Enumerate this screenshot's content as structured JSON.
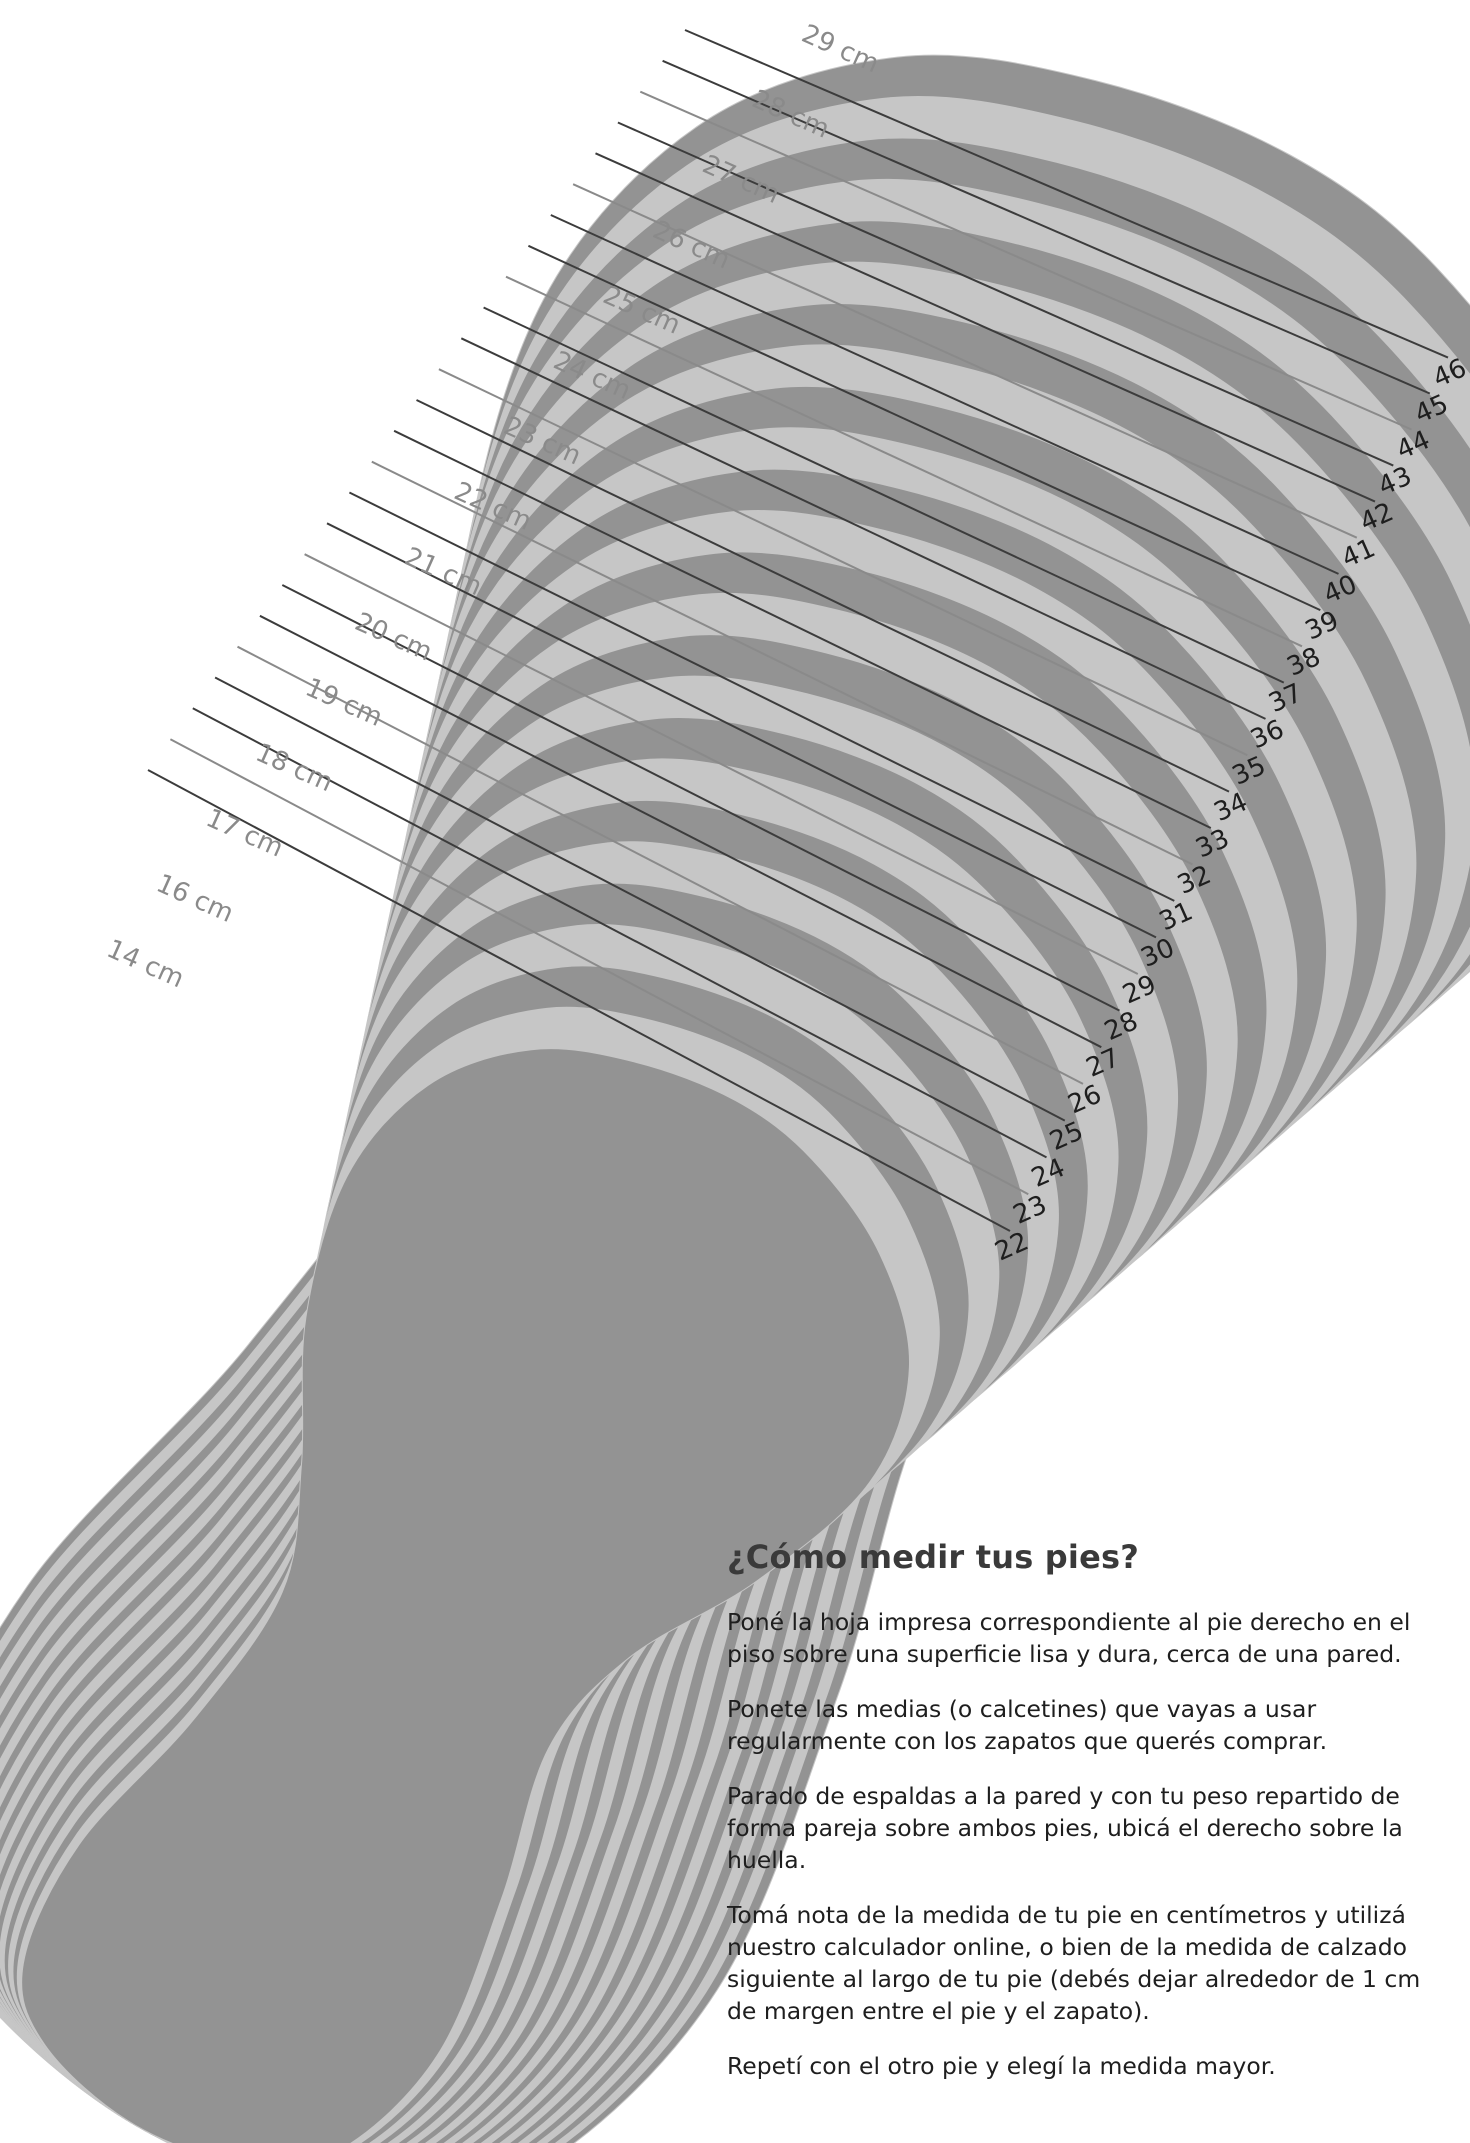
{
  "diagram": {
    "cm_labels": [
      "14 cm",
      "16 cm",
      "17 cm",
      "18 cm",
      "19 cm",
      "20 cm",
      "21 cm",
      "22 cm",
      "23 cm",
      "24 cm",
      "25 cm",
      "26 cm",
      "27 cm",
      "28 cm",
      "29 cm"
    ],
    "size_labels": [
      "22",
      "23",
      "24",
      "25",
      "26",
      "27",
      "28",
      "29",
      "30",
      "31",
      "32",
      "33",
      "34",
      "35",
      "36",
      "37",
      "38",
      "39",
      "40",
      "41",
      "42",
      "43",
      "44",
      "45",
      "46"
    ],
    "colors": {
      "outline_dark": "#939393",
      "outline_light": "#c6c6c6",
      "guide_line": "#3c3c3c",
      "guide_line_light": "#8a8a8a",
      "cm_text": "#8a8a8a",
      "size_text": "#1e1e1e"
    }
  },
  "instructions": {
    "title": "¿Cómo medir tus pies?",
    "paragraphs": [
      "Poné la hoja impresa correspondiente al pie derecho en el piso sobre una superficie lisa y dura, cerca de una pared.",
      "Ponete las medias (o calcetines) que vayas a usar regularmente con los zapatos que querés comprar.",
      "Parado de espaldas a la pared y con tu peso repartido de forma pareja sobre ambos pies, ubicá el derecho sobre la huella.",
      "Tomá nota de la medida de tu pie en centímetros y utilizá nuestro calculador online, o bien de la medida de calzado siguiente al largo de tu pie (debés dejar alrededor de 1 cm de margen entre el pie y el zapato).",
      "Repetí con el otro pie y elegí la medida mayor."
    ]
  }
}
